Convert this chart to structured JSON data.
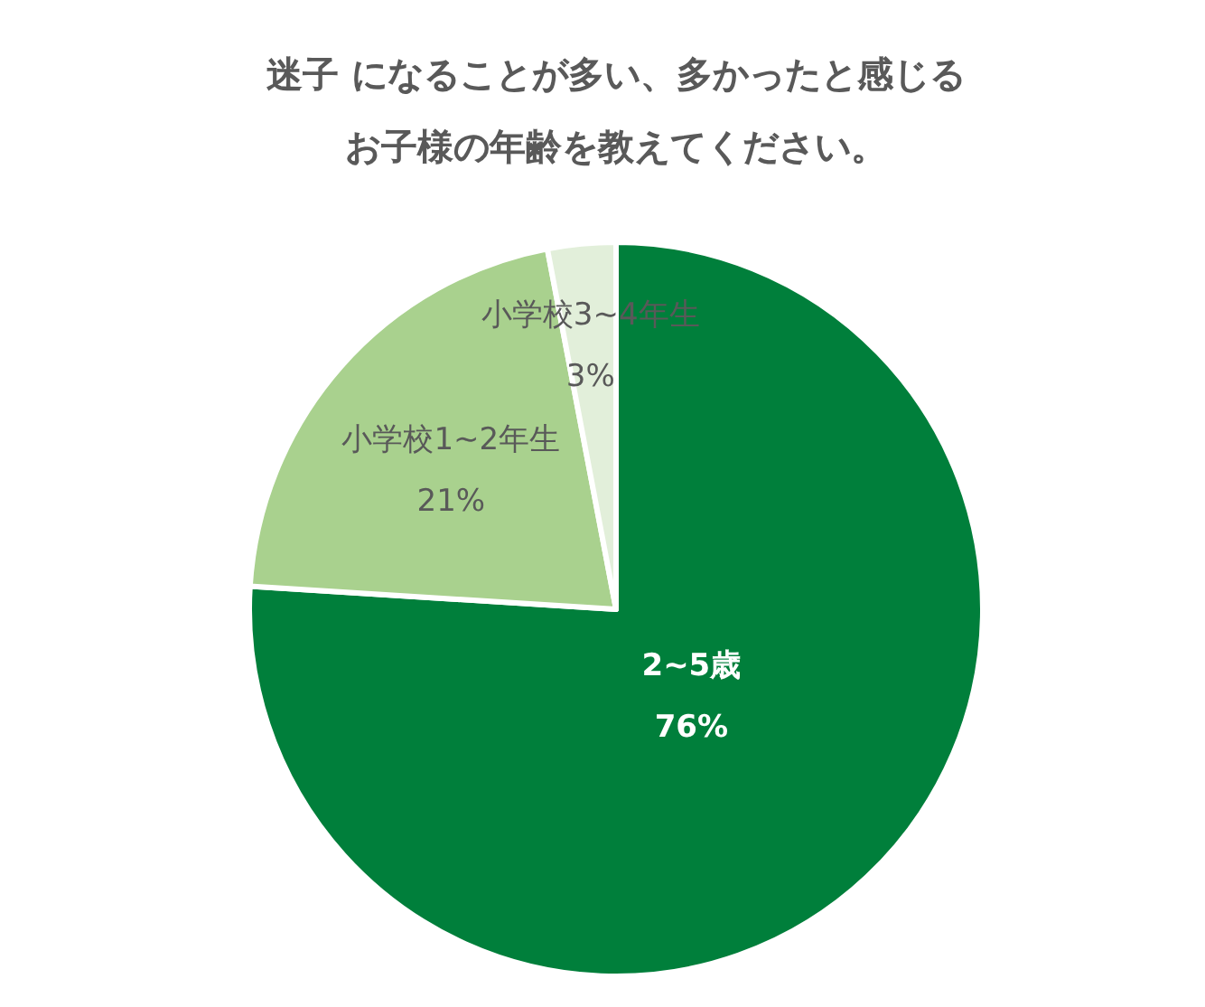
{
  "chart_data": {
    "type": "pie",
    "title": "迷子 になることが多い、多かったと感じるお子様の年齢を教えてください。",
    "categories": [
      "2~5歳",
      "小学校1~2年生",
      "小学校3~4年生"
    ],
    "values": [
      76,
      21,
      3
    ],
    "colors": [
      "#007f3b",
      "#a9d18e",
      "#e2efda"
    ],
    "value_labels": [
      "76%",
      "21%",
      "3%"
    ]
  }
}
